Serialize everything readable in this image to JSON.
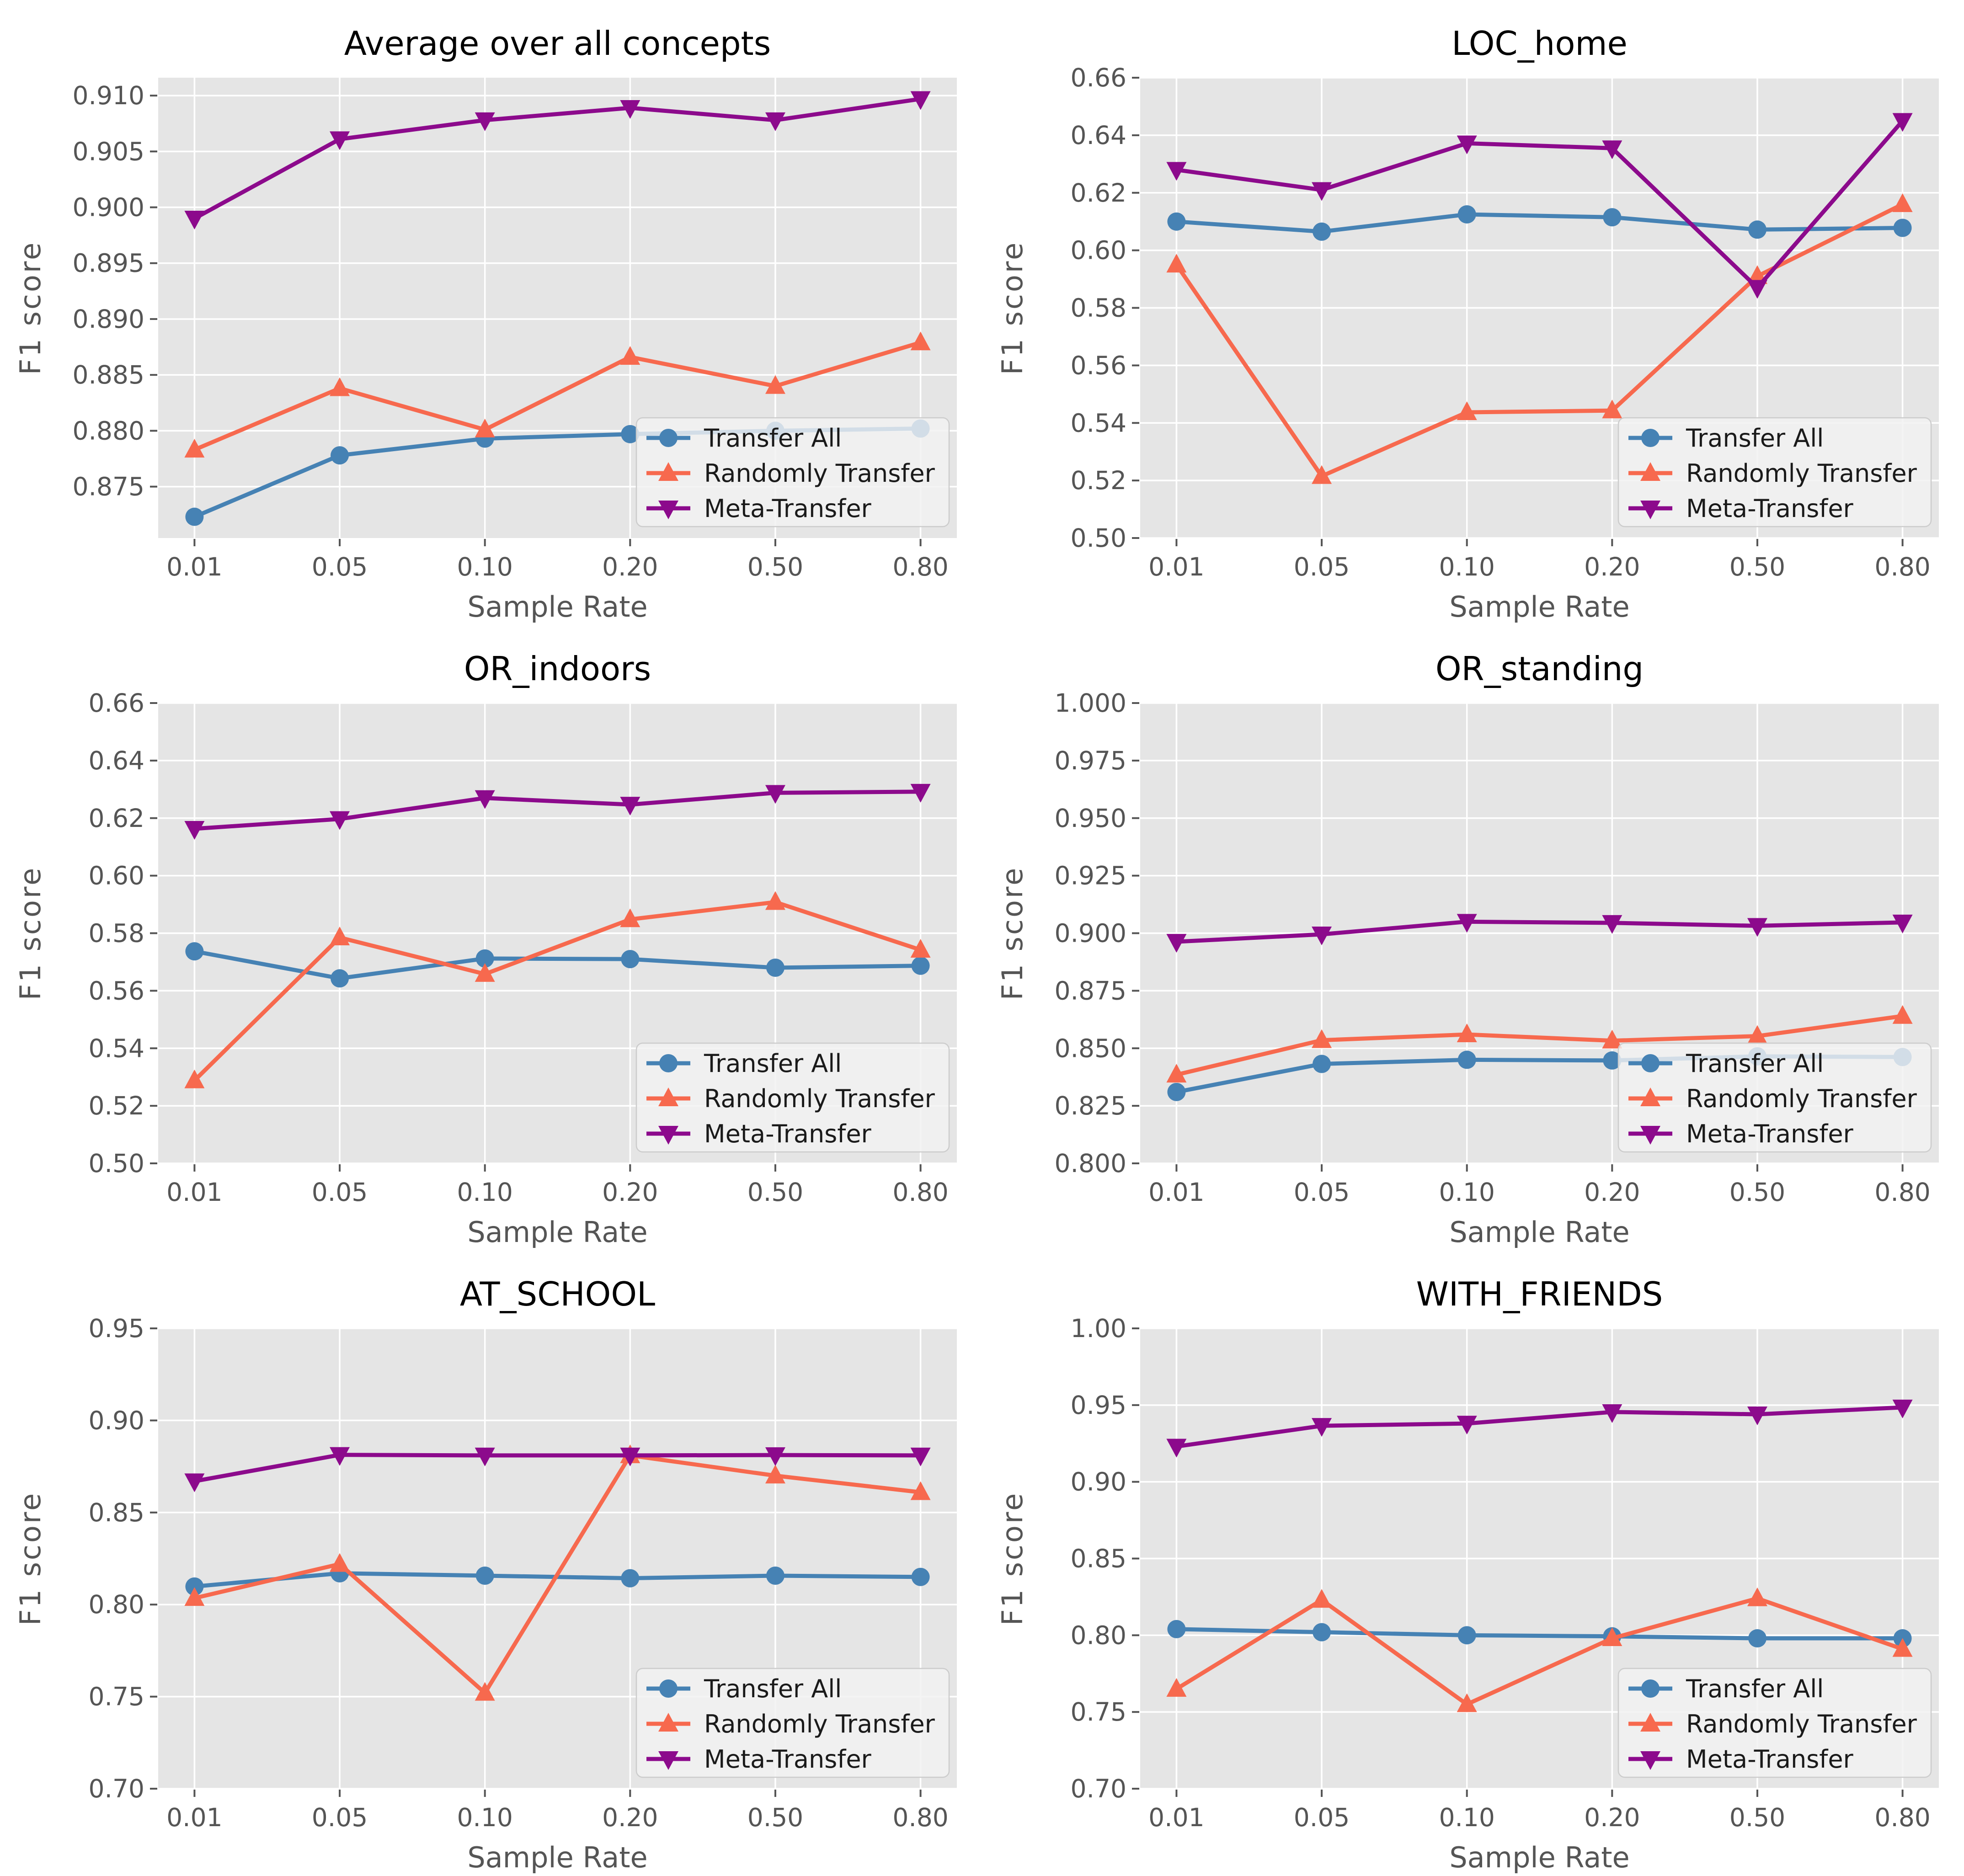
{
  "figure": {
    "background": "#ffffff",
    "grid_columns": 2,
    "grid_rows": 3
  },
  "style": {
    "plot_background": "#e5e5e5",
    "grid_color": "#ffffff",
    "grid_width": 3.5,
    "tick_color": "#555555",
    "tick_label_color": "#555555",
    "axis_label_color": "#555555",
    "title_color": "#000000",
    "line_width": 9,
    "legend": {
      "background": "#f2f2f2",
      "background_opacity": 0.82,
      "border_color": "#cccccc",
      "text_color": "#1a1a1a"
    }
  },
  "legend_items": [
    {
      "label": "Transfer All",
      "color": "#4682b4",
      "marker": "circle"
    },
    {
      "label": "Randomly Transfer",
      "color": "#f7694e",
      "marker": "triangle-up"
    },
    {
      "label": "Meta-Transfer",
      "color": "#8c0a8c",
      "marker": "triangle-down"
    }
  ],
  "chart_data": [
    {
      "type": "line",
      "title": "Average over all concepts",
      "xlabel": "Sample Rate",
      "ylabel": "F1 score",
      "x_tick_labels": [
        "0.01",
        "0.05",
        "0.10",
        "0.20",
        "0.50",
        "0.80"
      ],
      "ylim": [
        0.8704,
        0.9116
      ],
      "yticks": [
        "0.875",
        "0.880",
        "0.885",
        "0.890",
        "0.895",
        "0.900",
        "0.905",
        "0.910"
      ],
      "legend_position": "lower-right",
      "grid": true,
      "series": [
        {
          "name": "Transfer All",
          "values": [
            0.8723,
            0.8778,
            0.8793,
            0.8797,
            0.88,
            0.8802
          ]
        },
        {
          "name": "Randomly Transfer",
          "values": [
            0.8783,
            0.8838,
            0.8801,
            0.8866,
            0.884,
            0.8879
          ]
        },
        {
          "name": "Meta-Transfer",
          "values": [
            0.899,
            0.9061,
            0.9078,
            0.9089,
            0.9078,
            0.9097
          ]
        }
      ]
    },
    {
      "type": "line",
      "title": "LOC_home",
      "xlabel": "Sample Rate",
      "ylabel": "F1 score",
      "x_tick_labels": [
        "0.01",
        "0.05",
        "0.10",
        "0.20",
        "0.50",
        "0.80"
      ],
      "ylim": [
        0.5,
        0.66
      ],
      "yticks": [
        "0.50",
        "0.52",
        "0.54",
        "0.56",
        "0.58",
        "0.60",
        "0.62",
        "0.64",
        "0.66"
      ],
      "legend_position": "lower-right",
      "grid": true,
      "series": [
        {
          "name": "Transfer All",
          "values": [
            0.61,
            0.6065,
            0.6125,
            0.6115,
            0.6072,
            0.6078
          ]
        },
        {
          "name": "Randomly Transfer",
          "values": [
            0.595,
            0.5215,
            0.5437,
            0.5443,
            0.591,
            0.616
          ]
        },
        {
          "name": "Meta-Transfer",
          "values": [
            0.628,
            0.621,
            0.6372,
            0.6355,
            0.587,
            0.645
          ]
        }
      ]
    },
    {
      "type": "line",
      "title": "OR_indoors",
      "xlabel": "Sample Rate",
      "ylabel": "F1 score",
      "x_tick_labels": [
        "0.01",
        "0.05",
        "0.10",
        "0.20",
        "0.50",
        "0.80"
      ],
      "ylim": [
        0.5,
        0.66
      ],
      "yticks": [
        "0.50",
        "0.52",
        "0.54",
        "0.56",
        "0.58",
        "0.60",
        "0.62",
        "0.64",
        "0.66"
      ],
      "legend_position": "lower-right",
      "grid": true,
      "series": [
        {
          "name": "Transfer All",
          "values": [
            0.5737,
            0.5643,
            0.5712,
            0.571,
            0.568,
            0.5687
          ]
        },
        {
          "name": "Randomly Transfer",
          "values": [
            0.5288,
            0.5785,
            0.5658,
            0.5848,
            0.5908,
            0.5742
          ]
        },
        {
          "name": "Meta-Transfer",
          "values": [
            0.6163,
            0.6197,
            0.627,
            0.6247,
            0.6288,
            0.6292
          ]
        }
      ]
    },
    {
      "type": "line",
      "title": "OR_standing",
      "xlabel": "Sample Rate",
      "ylabel": "F1 score",
      "x_tick_labels": [
        "0.01",
        "0.05",
        "0.10",
        "0.20",
        "0.50",
        "0.80"
      ],
      "ylim": [
        0.8,
        1.0
      ],
      "yticks": [
        "0.800",
        "0.825",
        "0.850",
        "0.875",
        "0.900",
        "0.925",
        "0.950",
        "0.975",
        "1.000"
      ],
      "legend_position": "lower-right",
      "grid": true,
      "series": [
        {
          "name": "Transfer All",
          "values": [
            0.831,
            0.8432,
            0.845,
            0.8447,
            0.8465,
            0.8462
          ]
        },
        {
          "name": "Randomly Transfer",
          "values": [
            0.8385,
            0.8535,
            0.856,
            0.8533,
            0.8553,
            0.864
          ]
        },
        {
          "name": "Meta-Transfer",
          "values": [
            0.8963,
            0.8995,
            0.905,
            0.9045,
            0.9032,
            0.9047
          ]
        }
      ]
    },
    {
      "type": "line",
      "title": "AT_SCHOOL",
      "xlabel": "Sample Rate",
      "ylabel": "F1 score",
      "x_tick_labels": [
        "0.01",
        "0.05",
        "0.10",
        "0.20",
        "0.50",
        "0.80"
      ],
      "ylim": [
        0.7,
        0.95
      ],
      "yticks": [
        "0.70",
        "0.75",
        "0.80",
        "0.85",
        "0.90",
        "0.95"
      ],
      "legend_position": "lower-right",
      "grid": true,
      "series": [
        {
          "name": "Transfer All",
          "values": [
            0.8098,
            0.817,
            0.8157,
            0.8143,
            0.8157,
            0.815
          ]
        },
        {
          "name": "Randomly Transfer",
          "values": [
            0.8035,
            0.822,
            0.752,
            0.881,
            0.87,
            0.861
          ]
        },
        {
          "name": "Meta-Transfer",
          "values": [
            0.867,
            0.8813,
            0.881,
            0.881,
            0.8812,
            0.881
          ]
        }
      ]
    },
    {
      "type": "line",
      "title": "WITH_FRIENDS",
      "xlabel": "Sample Rate",
      "ylabel": "F1 score",
      "x_tick_labels": [
        "0.01",
        "0.05",
        "0.10",
        "0.20",
        "0.50",
        "0.80"
      ],
      "ylim": [
        0.7,
        1.0
      ],
      "yticks": [
        "0.70",
        "0.75",
        "0.80",
        "0.85",
        "0.90",
        "0.95",
        "1.00"
      ],
      "legend_position": "lower-right",
      "grid": true,
      "series": [
        {
          "name": "Transfer All",
          "values": [
            0.804,
            0.802,
            0.8,
            0.7993,
            0.798,
            0.798
          ]
        },
        {
          "name": "Randomly Transfer",
          "values": [
            0.765,
            0.823,
            0.755,
            0.798,
            0.824,
            0.791
          ]
        },
        {
          "name": "Meta-Transfer",
          "values": [
            0.923,
            0.9365,
            0.938,
            0.9455,
            0.944,
            0.9485
          ]
        }
      ]
    }
  ]
}
